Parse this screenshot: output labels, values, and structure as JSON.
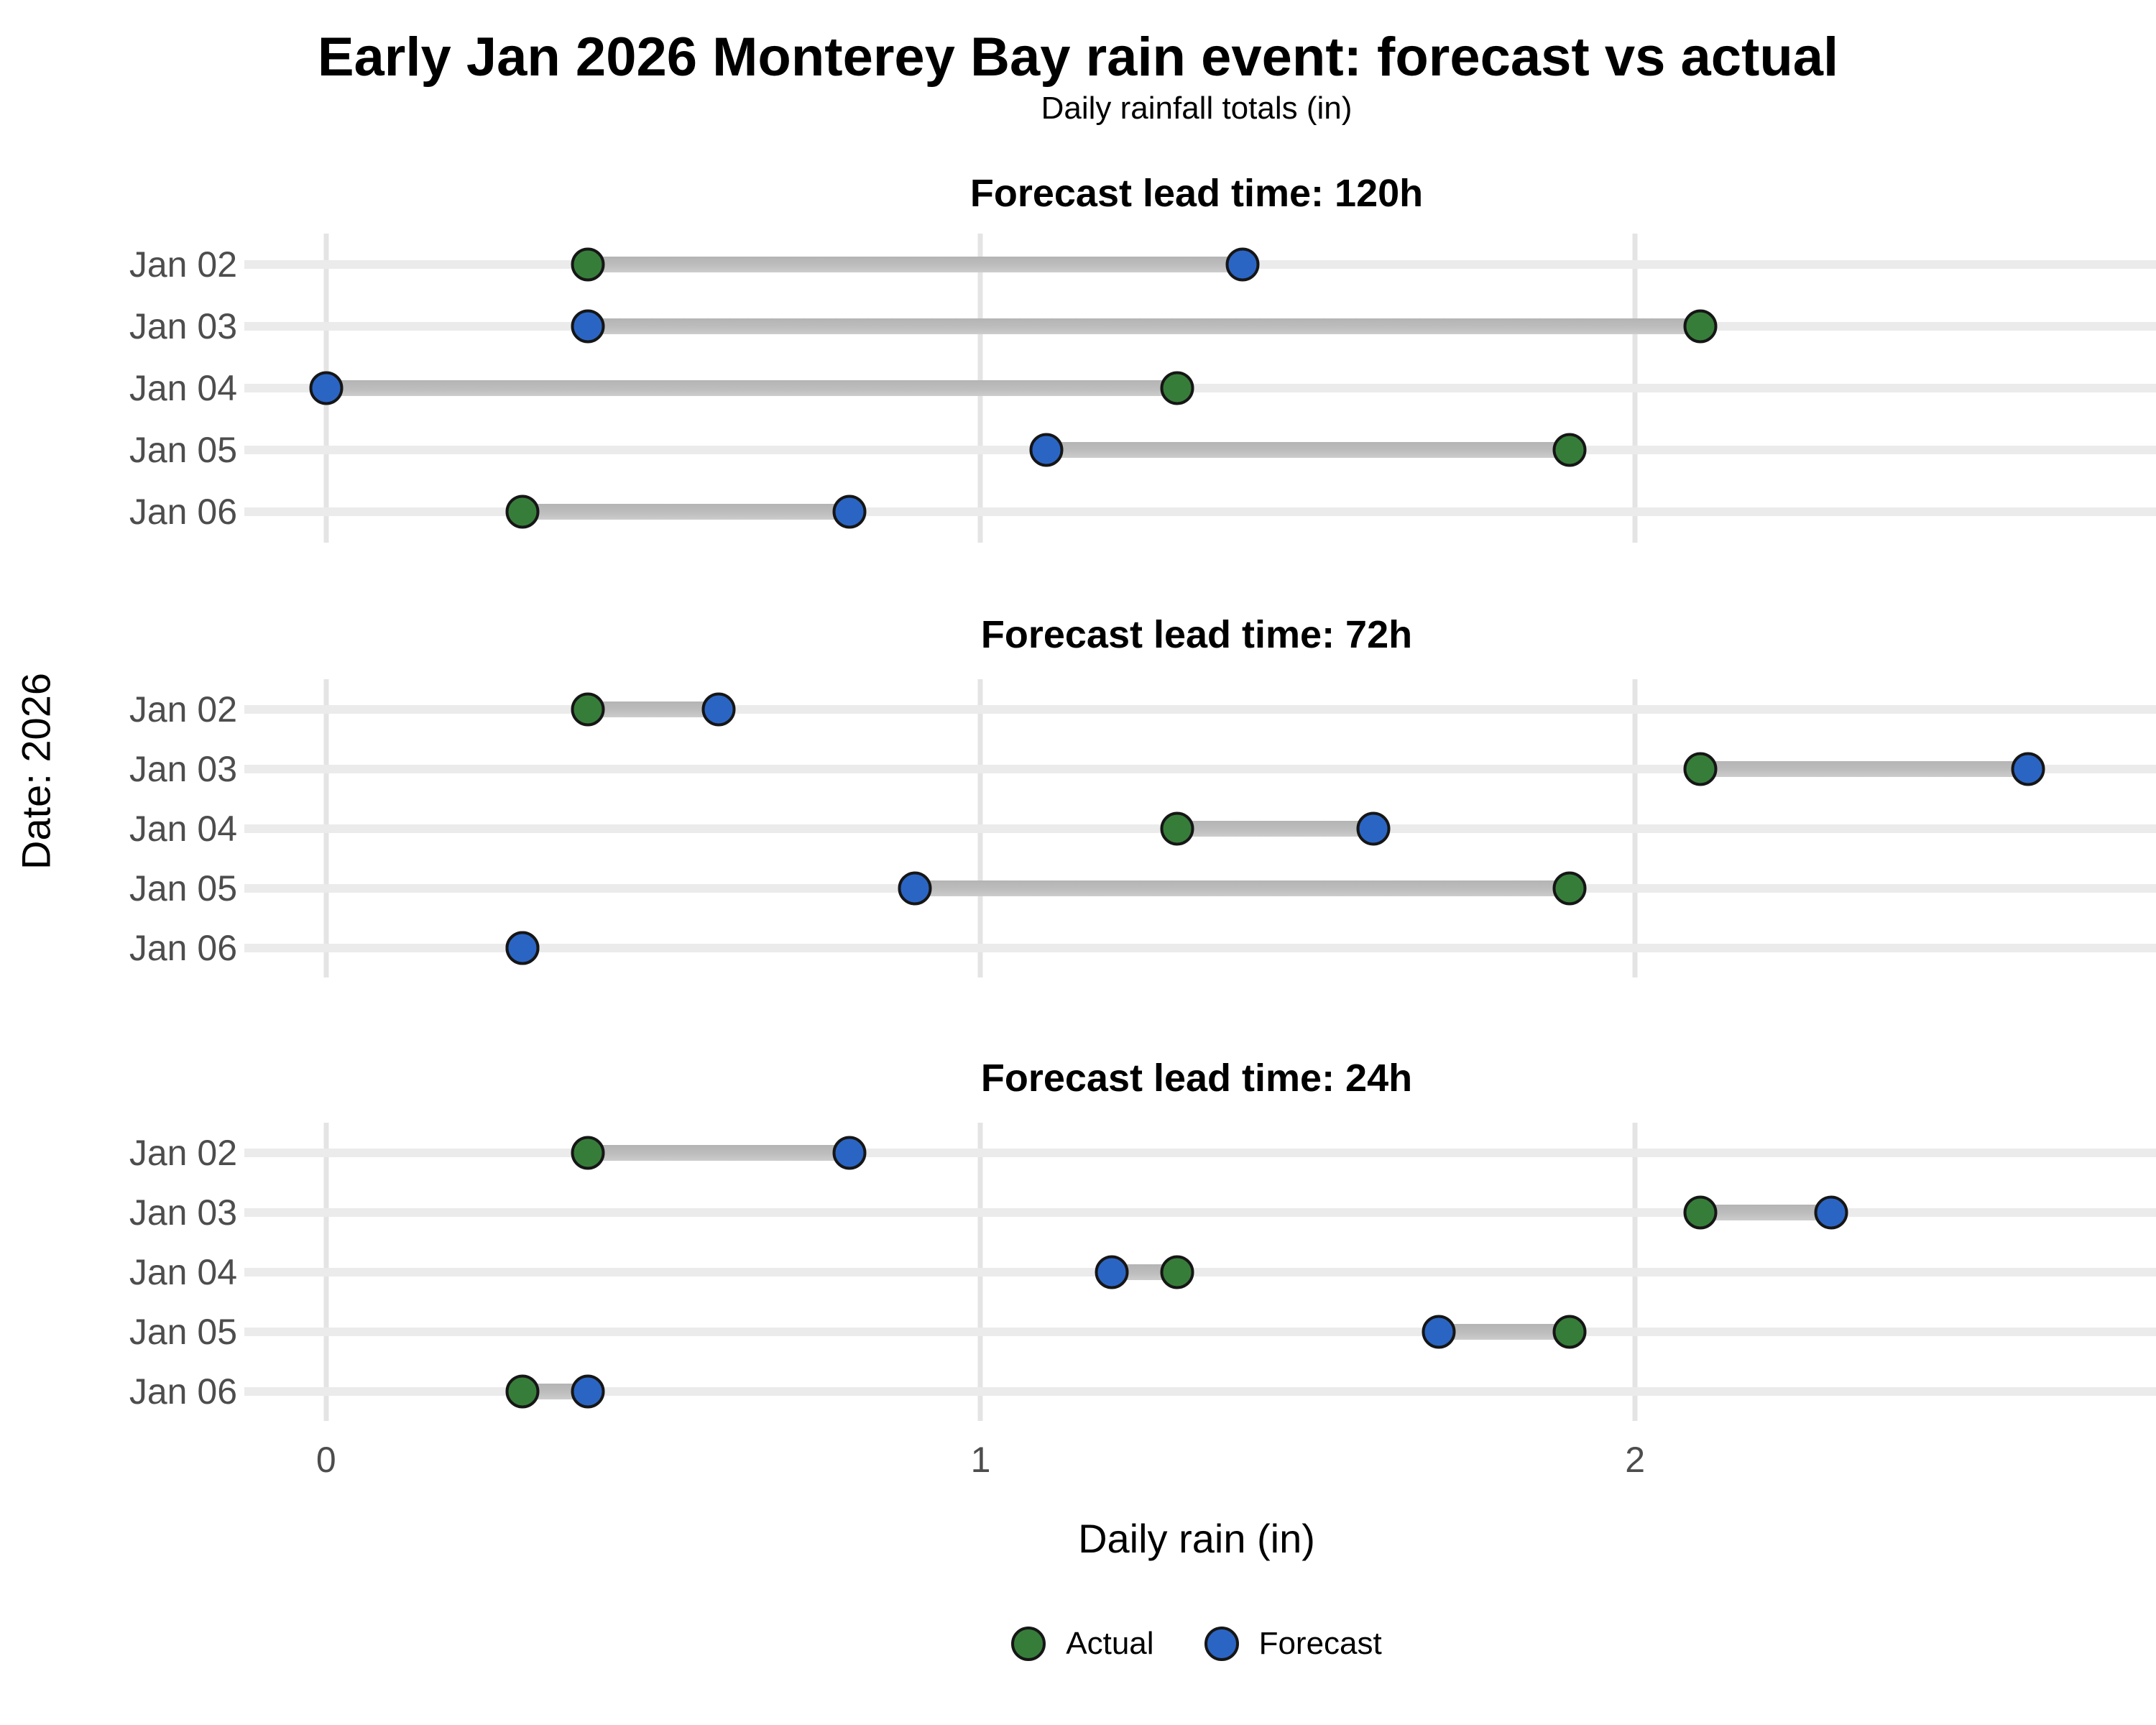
{
  "chart_data": {
    "type": "dumbbell",
    "title": "Early Jan 2026 Monterey Bay rain event: forecast vs actual",
    "subtitle": "Daily rainfall totals (in)",
    "xlabel": "Daily rain (in)",
    "ylabel": "Date: 2026",
    "x_ticks": [
      0,
      1,
      2
    ],
    "xlim": [
      -0.125,
      2.785
    ],
    "grid": "major-x",
    "legend_position": "bottom-center",
    "categories": [
      "Jan 02",
      "Jan 03",
      "Jan 04",
      "Jan 05",
      "Jan 06"
    ],
    "series_names": [
      "Actual",
      "Forecast"
    ],
    "panels": [
      {
        "title": "Forecast lead time: 120h",
        "lead_time": "120h",
        "rows": [
          {
            "date": "Jan 02",
            "actual": 0.4,
            "forecast": 1.4
          },
          {
            "date": "Jan 03",
            "actual": 2.1,
            "forecast": 0.4
          },
          {
            "date": "Jan 04",
            "actual": 1.3,
            "forecast": 0.0
          },
          {
            "date": "Jan 05",
            "actual": 1.9,
            "forecast": 1.1
          },
          {
            "date": "Jan 06",
            "actual": 0.3,
            "forecast": 0.8
          }
        ]
      },
      {
        "title": "Forecast lead time: 72h",
        "lead_time": "72h",
        "rows": [
          {
            "date": "Jan 02",
            "actual": 0.4,
            "forecast": 0.6
          },
          {
            "date": "Jan 03",
            "actual": 2.1,
            "forecast": 2.6
          },
          {
            "date": "Jan 04",
            "actual": 1.3,
            "forecast": 1.6
          },
          {
            "date": "Jan 05",
            "actual": 1.9,
            "forecast": 0.9
          },
          {
            "date": "Jan 06",
            "actual": 0.3,
            "forecast": 0.3
          }
        ]
      },
      {
        "title": "Forecast lead time: 24h",
        "lead_time": "24h",
        "rows": [
          {
            "date": "Jan 02",
            "actual": 0.4,
            "forecast": 0.8
          },
          {
            "date": "Jan 03",
            "actual": 2.1,
            "forecast": 2.3
          },
          {
            "date": "Jan 04",
            "actual": 1.3,
            "forecast": 1.2
          },
          {
            "date": "Jan 05",
            "actual": 1.9,
            "forecast": 1.7
          },
          {
            "date": "Jan 06",
            "actual": 0.3,
            "forecast": 0.4
          }
        ]
      }
    ],
    "legend": [
      {
        "label": "Actual",
        "color": "#377D3A"
      },
      {
        "label": "Forecast",
        "color": "#2B65C4"
      }
    ],
    "colors": {
      "actual": "#377D3A",
      "forecast": "#2B65C4",
      "point_outline": "#161616",
      "connector": "#BDBDBD",
      "row_line": "#EBEBEB",
      "gridline": "#E4E4E4",
      "tick_label": "#4D4D4D",
      "background": "#FFFFFF"
    }
  }
}
